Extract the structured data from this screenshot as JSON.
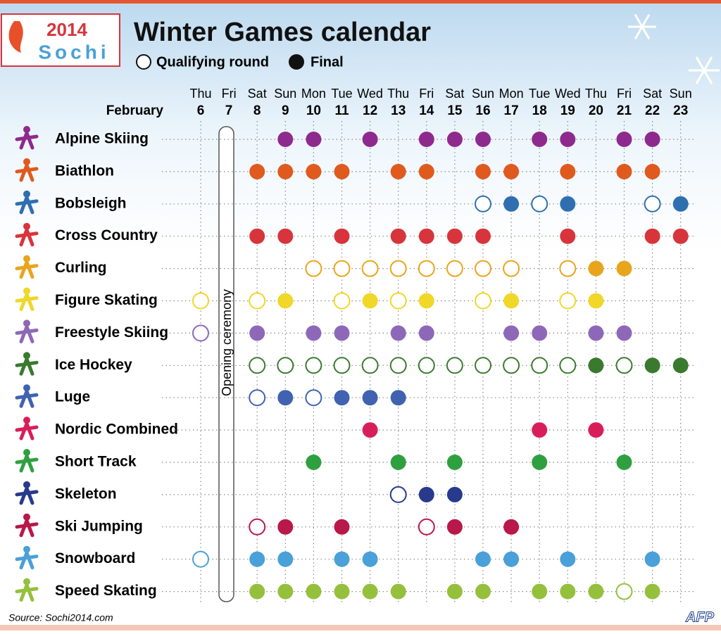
{
  "header": {
    "logo_year": "2014",
    "logo_city": "Sochi",
    "title": "Winter Games calendar",
    "legend": {
      "qualifying": "Qualifying round",
      "final": "Final"
    }
  },
  "month": "February",
  "days": [
    {
      "weekday": "Thu",
      "date": 6
    },
    {
      "weekday": "Fri",
      "date": 7
    },
    {
      "weekday": "Sat",
      "date": 8
    },
    {
      "weekday": "Sun",
      "date": 9
    },
    {
      "weekday": "Mon",
      "date": 10
    },
    {
      "weekday": "Tue",
      "date": 11
    },
    {
      "weekday": "Wed",
      "date": 12
    },
    {
      "weekday": "Thu",
      "date": 13
    },
    {
      "weekday": "Fri",
      "date": 14
    },
    {
      "weekday": "Sat",
      "date": 15
    },
    {
      "weekday": "Sun",
      "date": 16
    },
    {
      "weekday": "Mon",
      "date": 17
    },
    {
      "weekday": "Tue",
      "date": 18
    },
    {
      "weekday": "Wed",
      "date": 19
    },
    {
      "weekday": "Thu",
      "date": 20
    },
    {
      "weekday": "Fri",
      "date": 21
    },
    {
      "weekday": "Sat",
      "date": 22
    },
    {
      "weekday": "Sun",
      "date": 23
    }
  ],
  "opening": "Opening ceremony",
  "sports": [
    {
      "name": "Alpine Skiing",
      "color": "#8e2a8e",
      "qualifying": [],
      "final": [
        9,
        10,
        12,
        14,
        15,
        16,
        18,
        19,
        21,
        22
      ]
    },
    {
      "name": "Biathlon",
      "color": "#e05a1e",
      "qualifying": [],
      "final": [
        8,
        9,
        10,
        11,
        13,
        14,
        16,
        17,
        19,
        21,
        22
      ]
    },
    {
      "name": "Bobsleigh",
      "color": "#2f6fb0",
      "qualifying": [
        16,
        18,
        22
      ],
      "final": [
        17,
        19,
        23
      ]
    },
    {
      "name": "Cross Country",
      "color": "#d8343c",
      "qualifying": [],
      "final": [
        8,
        9,
        11,
        13,
        14,
        15,
        16,
        19,
        22,
        23
      ]
    },
    {
      "name": "Curling",
      "color": "#e8a51c",
      "qualifying": [
        10,
        11,
        12,
        13,
        14,
        15,
        16,
        17,
        19
      ],
      "final": [
        20,
        21
      ]
    },
    {
      "name": "Figure Skating",
      "color": "#f0d728",
      "qualifying": [
        6,
        8,
        11,
        13,
        16,
        19
      ],
      "final": [
        9,
        12,
        14,
        17,
        20
      ]
    },
    {
      "name": "Freestyle Skiing",
      "color": "#8e68b8",
      "qualifying": [
        6
      ],
      "final": [
        8,
        10,
        11,
        13,
        14,
        17,
        18,
        20,
        21
      ]
    },
    {
      "name": "Ice Hockey",
      "color": "#3a7a2e",
      "qualifying": [
        8,
        9,
        10,
        11,
        12,
        13,
        14,
        15,
        16,
        17,
        18,
        19,
        21
      ],
      "final": [
        20,
        22,
        23
      ]
    },
    {
      "name": "Luge",
      "color": "#4062b0",
      "qualifying": [
        8,
        10
      ],
      "final": [
        9,
        11,
        12,
        13
      ]
    },
    {
      "name": "Nordic Combined",
      "color": "#d81e5a",
      "qualifying": [],
      "final": [
        12,
        18,
        20
      ]
    },
    {
      "name": "Short Track",
      "color": "#2fa040",
      "qualifying": [],
      "final": [
        10,
        13,
        15,
        18,
        21
      ]
    },
    {
      "name": "Skeleton",
      "color": "#283a8c",
      "qualifying": [
        13
      ],
      "final": [
        14,
        15
      ]
    },
    {
      "name": "Ski Jumping",
      "color": "#b8184a",
      "qualifying": [
        8,
        14
      ],
      "final": [
        9,
        11,
        15,
        17
      ]
    },
    {
      "name": "Snowboard",
      "color": "#4aa0d8",
      "qualifying": [
        6
      ],
      "final": [
        8,
        9,
        11,
        12,
        16,
        17,
        19,
        22
      ]
    },
    {
      "name": "Speed Skating",
      "color": "#94c03c",
      "qualifying": [
        21
      ],
      "final": [
        8,
        9,
        10,
        11,
        12,
        13,
        15,
        16,
        18,
        19,
        20,
        22
      ]
    }
  ],
  "source": "Source: Sochi2014.com",
  "credit": "AFP"
}
